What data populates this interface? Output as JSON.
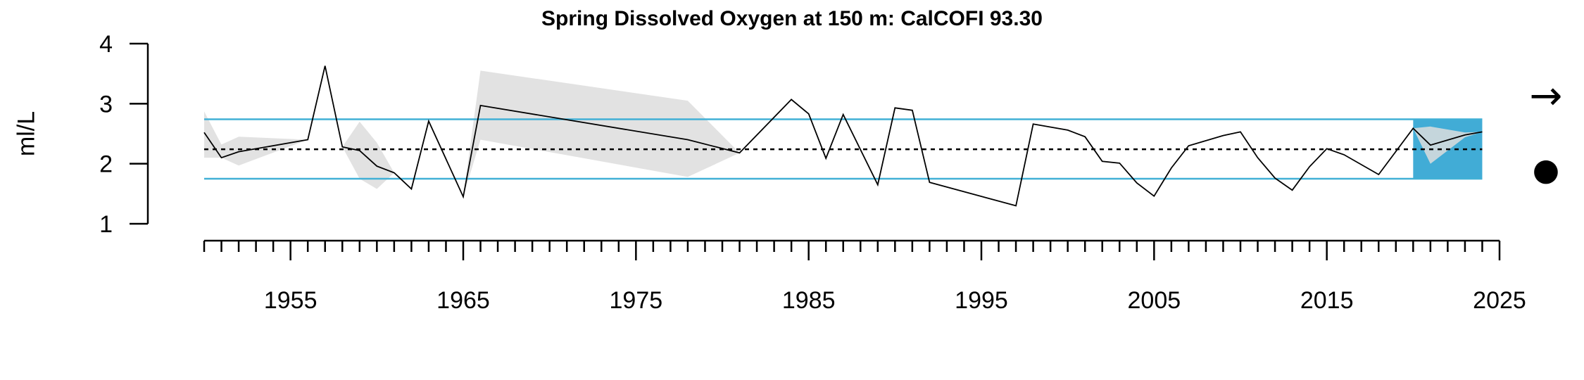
{
  "chart_data": {
    "type": "line",
    "title": "Spring Dissolved Oxygen at 150 m: CalCOFI 93.30",
    "ylabel": "ml/L",
    "xlabel": "",
    "xlim": [
      1950,
      2025
    ],
    "ylim": [
      1,
      4
    ],
    "y_ticks": [
      1,
      2,
      3,
      4
    ],
    "x_tick_labels": [
      1955,
      1965,
      1975,
      1985,
      1995,
      2005,
      2015,
      2025
    ],
    "x_minor_ticks_every": 1,
    "mean": 2.24,
    "mean_plus_sd": 2.74,
    "mean_minus_sd": 1.75,
    "recent_period": [
      2020,
      2024
    ],
    "trend_symbol": "→",
    "mean_symbol": "●",
    "colors": {
      "line": "#000000",
      "band": "#dddddd",
      "sd_line": "#41b0d6",
      "recent": "#41acd6"
    },
    "series": [
      {
        "x": [
          1950,
          1951,
          1952,
          1956,
          1957,
          1958,
          1959,
          1960,
          1961,
          1962,
          1963,
          1965,
          1966,
          1978,
          1981,
          1984,
          1985,
          1986,
          1987,
          1989,
          1990,
          1991,
          1992,
          1997,
          1998,
          2000,
          2001,
          2002,
          2003,
          2004,
          2005,
          2006,
          2007,
          2009,
          2010,
          2011,
          2012,
          2013,
          2014,
          2015,
          2016,
          2018,
          2020,
          2021,
          2023,
          2024
        ],
        "y": [
          2.52,
          2.1,
          2.2,
          2.4,
          3.63,
          2.28,
          2.22,
          1.96,
          1.85,
          1.58,
          2.71,
          1.45,
          2.97,
          2.4,
          2.18,
          3.07,
          2.83,
          2.09,
          2.82,
          1.65,
          2.93,
          2.89,
          1.69,
          1.3,
          2.66,
          2.56,
          2.45,
          2.04,
          2.01,
          1.68,
          1.46,
          1.93,
          2.3,
          2.47,
          2.53,
          2.1,
          1.76,
          1.56,
          1.95,
          2.25,
          2.15,
          1.82,
          2.59,
          2.31,
          2.48,
          2.53
        ],
        "upper": [
          2.87,
          2.32,
          2.45,
          2.4,
          3.63,
          2.28,
          2.7,
          2.35,
          1.85,
          1.58,
          2.71,
          1.45,
          3.55,
          3.05,
          2.18,
          3.07,
          2.83,
          2.09,
          2.82,
          1.65,
          2.93,
          2.89,
          1.69,
          1.3,
          2.66,
          2.56,
          2.45,
          2.04,
          2.01,
          1.68,
          1.46,
          1.93,
          2.3,
          2.47,
          2.53,
          2.1,
          1.76,
          1.56,
          1.95,
          2.25,
          2.15,
          1.82,
          2.59,
          2.62,
          2.52,
          2.53
        ],
        "lower": [
          2.1,
          2.1,
          1.97,
          2.4,
          3.63,
          2.28,
          1.75,
          1.58,
          1.85,
          1.58,
          2.71,
          1.45,
          2.4,
          1.78,
          2.18,
          3.07,
          2.83,
          2.09,
          2.82,
          1.65,
          2.93,
          2.89,
          1.69,
          1.3,
          2.66,
          2.56,
          2.45,
          2.04,
          2.01,
          1.68,
          1.46,
          1.93,
          2.3,
          2.47,
          2.53,
          2.1,
          1.76,
          1.56,
          1.95,
          2.25,
          2.15,
          1.82,
          2.59,
          2.0,
          2.44,
          2.53
        ]
      }
    ]
  }
}
